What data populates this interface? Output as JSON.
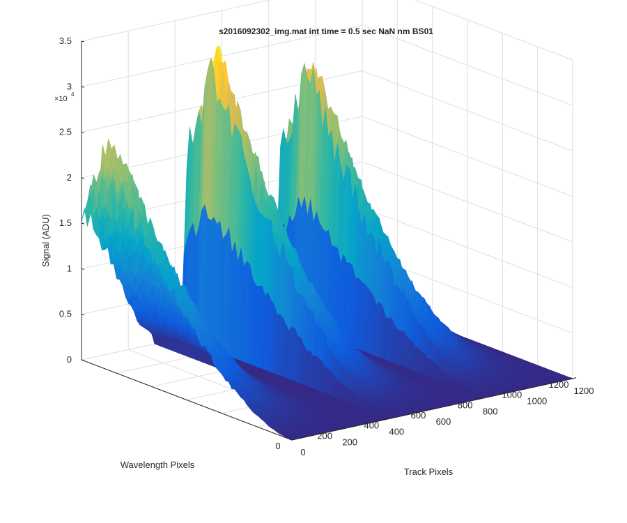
{
  "chart_data": {
    "type": "surface",
    "title": "s2016092302_img.mat int time = 0.5 sec  NaN nm BS01",
    "xlabel": "Track Pixels",
    "ylabel": "Wavelength Pixels",
    "zlabel": "Signal (ADU)",
    "z_multiplier": "×10",
    "z_multiplier_exp": "4",
    "xlim": [
      0,
      1200
    ],
    "ylim": [
      0,
      1200
    ],
    "zlim": [
      0,
      3.5
    ],
    "x_ticks": [
      "0",
      "200",
      "400",
      "600",
      "800",
      "1000",
      "1200"
    ],
    "y_ticks": [
      "0",
      "200",
      "400",
      "600",
      "800",
      "1000",
      "1200"
    ],
    "z_ticks": [
      "0",
      "0.5",
      "1",
      "1.5",
      "2",
      "2.5",
      "3",
      "3.5"
    ],
    "grid": true,
    "colormap": "parula",
    "colormap_stops": [
      "#352a87",
      "#0f5cdd",
      "#1481d6",
      "#06a4ca",
      "#2eb7a4",
      "#87bf77",
      "#d1bb59",
      "#fec832",
      "#f9fb0e"
    ],
    "series": [
      {
        "track_center": 150,
        "peak_wavelength_px": 1050,
        "peak_signal": 2.7
      },
      {
        "track_center": 600,
        "peak_wavelength_px": 1050,
        "peak_signal": 3.4
      },
      {
        "track_center": 1000,
        "peak_wavelength_px": 1050,
        "peak_signal": 3.1
      }
    ]
  }
}
